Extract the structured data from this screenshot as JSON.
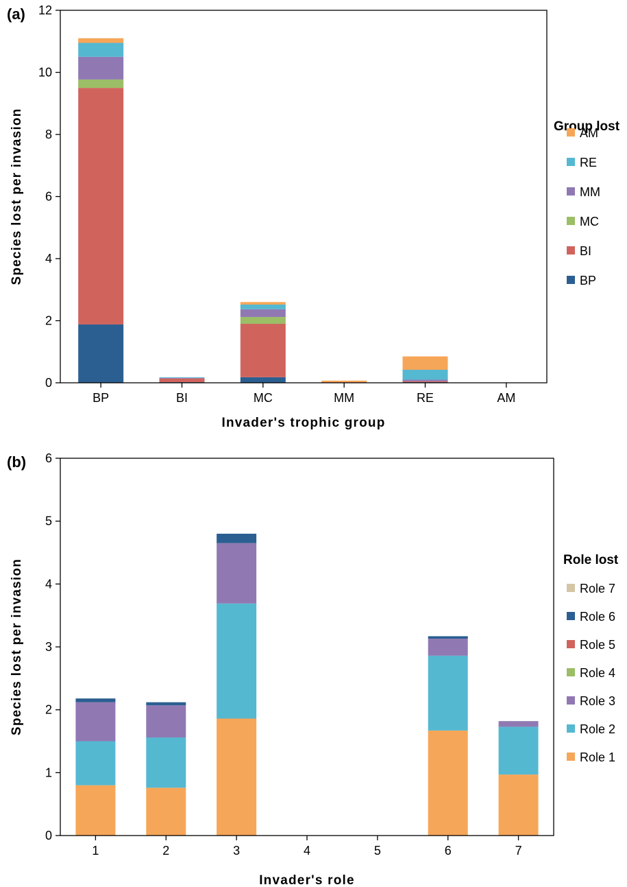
{
  "chart_data": [
    {
      "type": "bar",
      "stacked": true,
      "panel_label": "(a)",
      "title": "",
      "xlabel": "Invader's trophic group",
      "ylabel": "Species lost per invasion",
      "categories": [
        "BP",
        "BI",
        "MC",
        "MM",
        "RE",
        "AM"
      ],
      "ylim": [
        0,
        12
      ],
      "yticks": [
        0,
        2,
        4,
        6,
        8,
        10,
        12
      ],
      "grid": false,
      "legend_title": "Group lost",
      "legend_position": "right",
      "series": [
        {
          "name": "BP",
          "color": "#2c5f91",
          "values": [
            1.88,
            0.02,
            0.18,
            0.0,
            0.02,
            0.0
          ]
        },
        {
          "name": "BI",
          "color": "#d0645d",
          "values": [
            7.62,
            0.12,
            1.72,
            0.02,
            0.03,
            0.0
          ]
        },
        {
          "name": "MC",
          "color": "#9bbe66",
          "values": [
            0.27,
            0.0,
            0.22,
            0.0,
            0.0,
            0.0
          ]
        },
        {
          "name": "MM",
          "color": "#9079b3",
          "values": [
            0.73,
            0.02,
            0.25,
            0.0,
            0.05,
            0.0
          ]
        },
        {
          "name": "RE",
          "color": "#55b8d1",
          "values": [
            0.45,
            0.02,
            0.15,
            0.0,
            0.32,
            0.0
          ]
        },
        {
          "name": "AM",
          "color": "#f6a658",
          "values": [
            0.15,
            0.0,
            0.08,
            0.05,
            0.43,
            0.0
          ]
        }
      ]
    },
    {
      "type": "bar",
      "stacked": true,
      "panel_label": "(b)",
      "title": "",
      "xlabel": "Invader's role",
      "ylabel": "Species lost per invasion",
      "categories": [
        "1",
        "2",
        "3",
        "4",
        "5",
        "6",
        "7"
      ],
      "ylim": [
        0,
        6
      ],
      "yticks": [
        0,
        1,
        2,
        3,
        4,
        5,
        6
      ],
      "grid": false,
      "legend_title": "Role lost",
      "legend_position": "right",
      "series": [
        {
          "name": "Role 1",
          "color": "#f6a658",
          "values": [
            0.8,
            0.76,
            1.86,
            0,
            0,
            1.67,
            0.97
          ]
        },
        {
          "name": "Role 2",
          "color": "#55b8d1",
          "values": [
            0.7,
            0.8,
            1.83,
            0,
            0,
            1.19,
            0.76
          ]
        },
        {
          "name": "Role 3",
          "color": "#9079b3",
          "values": [
            0.62,
            0.51,
            0.96,
            0,
            0,
            0.27,
            0.09
          ]
        },
        {
          "name": "Role 4",
          "color": "#9bbe66",
          "values": [
            0,
            0,
            0,
            0,
            0,
            0,
            0
          ]
        },
        {
          "name": "Role 5",
          "color": "#d0645d",
          "values": [
            0,
            0,
            0,
            0,
            0,
            0,
            0
          ]
        },
        {
          "name": "Role 6",
          "color": "#2c5f91",
          "values": [
            0.06,
            0.05,
            0.15,
            0,
            0,
            0.04,
            0
          ]
        },
        {
          "name": "Role 7",
          "color": "#d4c6a5",
          "values": [
            0,
            0,
            0,
            0,
            0,
            0,
            0
          ]
        }
      ]
    }
  ]
}
